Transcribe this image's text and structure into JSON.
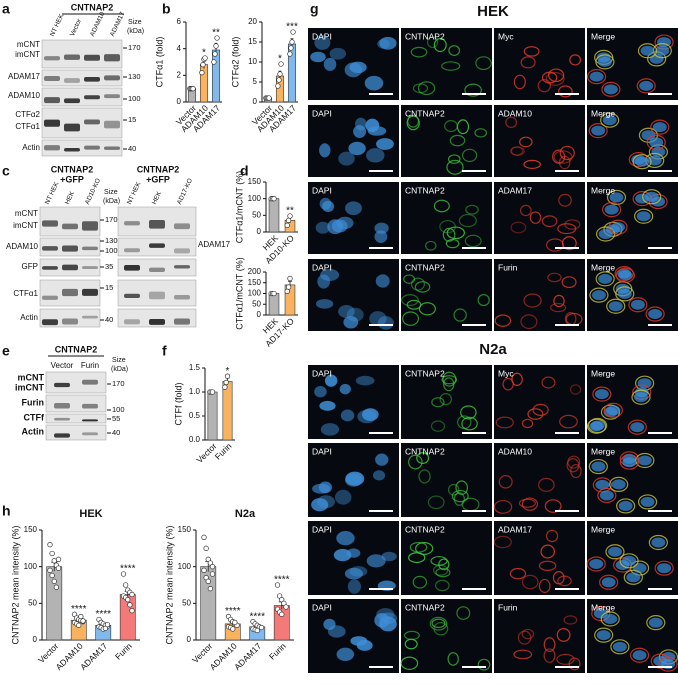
{
  "chart_data": [
    {
      "type": "bar",
      "panel": "b",
      "ylabel": "CTFα1 (fold)",
      "categories": [
        "Vector",
        "ADAM10",
        "ADAM17"
      ],
      "values": [
        1,
        2.8,
        3.9
      ],
      "errors": [
        0,
        0.3,
        0.5
      ],
      "points": [
        [
          1,
          1,
          1,
          1
        ],
        [
          2.2,
          2.8,
          3.2,
          3.3
        ],
        [
          3.0,
          3.6,
          4.2,
          4.8
        ]
      ],
      "annotations": [
        null,
        "*",
        "**"
      ],
      "colors": [
        "#b3b3b3",
        "#f9b35f",
        "#82b9ec"
      ],
      "ylim": [
        0,
        6
      ],
      "yticks": [
        0,
        2,
        4,
        6
      ]
    },
    {
      "type": "bar",
      "ylabel": "CTFα2 (fold)",
      "categories": [
        "Vector",
        "ADAM10",
        "ADAM17"
      ],
      "values": [
        1,
        6.5,
        14.5
      ],
      "errors": [
        0,
        1.2,
        1.3
      ],
      "points": [
        [
          1,
          1,
          1,
          1
        ],
        [
          4,
          5.5,
          7,
          9.5
        ],
        [
          12,
          13.5,
          15,
          17.5
        ]
      ],
      "annotations": [
        null,
        "*",
        "***"
      ],
      "colors": [
        "#b3b3b3",
        "#f9b35f",
        "#82b9ec"
      ],
      "ylim": [
        0,
        20
      ],
      "yticks": [
        0,
        5,
        10,
        15,
        20
      ]
    },
    {
      "type": "bar",
      "panel": "d",
      "ylabel": "CTFα1/mCNT (%)",
      "categories": [
        "HEK",
        "AD10-KO"
      ],
      "values": [
        100,
        35
      ],
      "errors": [
        0,
        8
      ],
      "points": [
        [
          100,
          100,
          100
        ],
        [
          20,
          35,
          48
        ]
      ],
      "annotations": [
        null,
        "**"
      ],
      "colors": [
        "#b3b3b3",
        "#f9b35f"
      ],
      "ylim": [
        0,
        150
      ],
      "yticks": [
        0,
        50,
        100,
        150
      ]
    },
    {
      "type": "bar",
      "ylabel": "CTFα1/mCNT (%)",
      "categories": [
        "HEK",
        "AD17-KO"
      ],
      "values": [
        100,
        140
      ],
      "errors": [
        0,
        17
      ],
      "points": [
        [
          100,
          100,
          100
        ],
        [
          110,
          130,
          170
        ]
      ],
      "annotations": [
        null,
        null
      ],
      "colors": [
        "#b3b3b3",
        "#f9b35f"
      ],
      "ylim": [
        0,
        200
      ],
      "yticks": [
        0,
        50,
        100,
        150,
        200
      ]
    },
    {
      "type": "bar",
      "panel": "f",
      "ylabel": "CTFf (fold)",
      "categories": [
        "Vector",
        "Furin"
      ],
      "values": [
        1,
        1.22
      ],
      "errors": [
        0,
        0.07
      ],
      "points": [
        [
          1,
          1,
          1
        ],
        [
          1.1,
          1.2,
          1.33
        ]
      ],
      "annotations": [
        null,
        "*"
      ],
      "colors": [
        "#b3b3b3",
        "#f9b35f"
      ],
      "ylim": [
        0,
        1.5
      ],
      "yticks": [
        {
          "value": 0,
          "label": "0.0"
        },
        {
          "value": 0.5,
          "label": "0.5"
        },
        {
          "value": 1,
          "label": "1.0"
        },
        {
          "value": 1.5,
          "label": "1.5"
        }
      ]
    },
    {
      "type": "bar",
      "panel": "h",
      "title": "HEK",
      "ylabel": "CNTNAP2 mean intensity (%)",
      "categories": [
        "Vector",
        "ADAM10",
        "ADAM17",
        "Furin"
      ],
      "values": [
        100,
        27,
        20,
        62
      ],
      "errors": [
        6,
        1.5,
        1.5,
        4
      ],
      "points": [
        [
          130,
          118,
          108,
          102,
          98,
          95,
          88,
          80,
          72,
          110
        ],
        [
          35,
          30,
          28,
          27,
          25,
          24,
          22,
          20,
          32,
          26
        ],
        [
          28,
          24,
          22,
          20,
          19,
          18,
          17,
          15,
          16,
          21
        ],
        [
          90,
          75,
          68,
          65,
          62,
          60,
          58,
          55,
          48,
          40
        ]
      ],
      "annotations": [
        null,
        "****",
        "****",
        "****"
      ],
      "colors": [
        "#b3b3b3",
        "#f9b35f",
        "#82b9ec",
        "#f47a7a"
      ],
      "ylim": [
        0,
        150
      ],
      "yticks": [
        0,
        50,
        100,
        150
      ]
    },
    {
      "type": "bar",
      "title": "N2a",
      "ylabel": "CNTNAP2 mean intensity (%)",
      "categories": [
        "Vector",
        "ADAM10",
        "ADAM17",
        "Furin"
      ],
      "values": [
        100,
        22,
        18,
        47
      ],
      "errors": [
        7,
        2,
        1.5,
        5
      ],
      "points": [
        [
          140,
          125,
          110,
          105,
          100,
          95,
          85,
          80,
          70,
          90
        ],
        [
          32,
          28,
          25,
          22,
          20,
          18,
          17,
          15,
          24
        ],
        [
          25,
          22,
          20,
          18,
          17,
          15,
          14,
          13
        ],
        [
          75,
          60,
          55,
          50,
          45,
          42,
          38,
          35
        ]
      ],
      "annotations": [
        null,
        "****",
        "****",
        "****"
      ],
      "colors": [
        "#b3b3b3",
        "#f9b35f",
        "#82b9ec",
        "#f47a7a"
      ],
      "ylim": [
        0,
        150
      ],
      "yticks": [
        0,
        50,
        100,
        150
      ]
    }
  ],
  "blots": {
    "a": {
      "letter": "a",
      "header": "CNTNAP2",
      "lanes": [
        "NT HEK",
        "Vector",
        "ADAM10",
        "ADAM17"
      ],
      "size": "Size",
      "size_unit": "(kDa)",
      "rows": [
        "mCNT",
        "imCNT",
        "ADAM17",
        "ADAM10",
        "CTFα2",
        "CTFα1",
        "Actin"
      ],
      "markers": [
        170,
        130,
        100,
        15,
        40
      ]
    },
    "c": {
      "letter": "c",
      "groups": [
        {
          "header": [
            "CNTNAP2",
            "+GFP"
          ],
          "lanes": [
            "NT HEK",
            "HEK",
            "AD10-KO"
          ]
        },
        {
          "header": [
            "CNTNAP2",
            "+GFP"
          ],
          "lanes": [
            "NT HEK",
            "HEK",
            "AD17-KO"
          ]
        }
      ],
      "size": "Size",
      "size_unit": "(kDa)",
      "rows": [
        "mCNT",
        "imCNT",
        "ADAM10",
        "GFP",
        "CTFα1",
        "Actin"
      ],
      "right_row": "ADAM17",
      "markers": [
        170,
        130,
        100,
        35,
        15,
        40
      ]
    },
    "e": {
      "letter": "e",
      "header": "CNTNAP2",
      "lanes": [
        "Vector",
        "Furin"
      ],
      "size": "Size",
      "size_unit": "(kDa)",
      "rows": [
        "mCNT",
        "imCNT",
        "Furin",
        "CTFf",
        "Actin"
      ],
      "markers": [
        170,
        100,
        55,
        40
      ]
    }
  },
  "images": {
    "letter": "g",
    "sections": [
      {
        "title": "HEK",
        "rows": [
          [
            "DAPI",
            "CNTNAP2",
            "Myc",
            "Merge"
          ],
          [
            "DAPI",
            "CNTNAP2",
            "ADAM10",
            "Merge"
          ],
          [
            "DAPI",
            "CNTNAP2",
            "ADAM17",
            "Merge"
          ],
          [
            "DAPI",
            "CNTNAP2",
            "Furin",
            "Merge"
          ]
        ]
      },
      {
        "title": "N2a",
        "rows": [
          [
            "DAPI",
            "CNTNAP2",
            "Myc",
            "Merge"
          ],
          [
            "DAPI",
            "CNTNAP2",
            "ADAM10",
            "Merge"
          ],
          [
            "DAPI",
            "CNTNAP2",
            "ADAM17",
            "Merge"
          ],
          [
            "DAPI",
            "CNTNAP2",
            "Furin",
            "Merge"
          ]
        ]
      }
    ]
  }
}
